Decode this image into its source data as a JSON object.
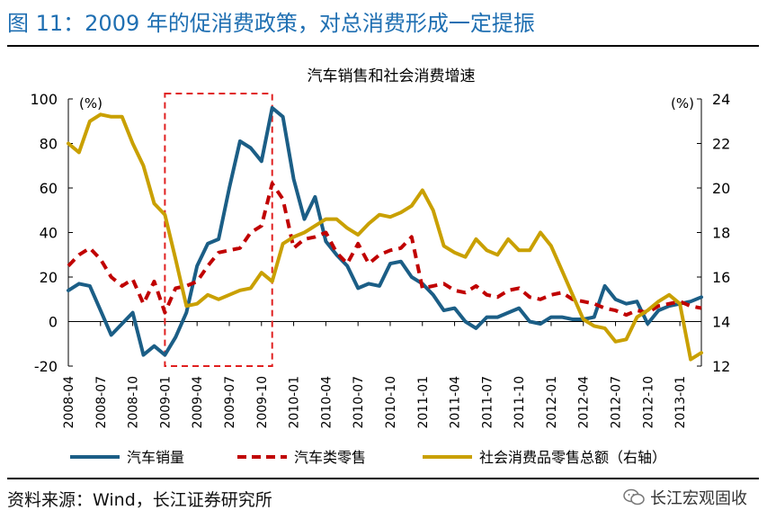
{
  "figure": {
    "title": "图 11：2009 年的促消费政策，对总消费形成一定提振",
    "source": "资料来源：Wind，长江证券研究所",
    "brand": "长江宏观固收"
  },
  "chart_data": {
    "type": "line",
    "title": "汽车销售和社会消费增速",
    "left_unit": "(%)",
    "right_unit": "(%)",
    "ylim_left": [
      -20,
      100
    ],
    "yticks_left": [
      "100",
      "80",
      "60",
      "40",
      "20",
      "0",
      "-20"
    ],
    "ylim_right": [
      12,
      24
    ],
    "yticks_right": [
      "24",
      "22",
      "20",
      "18",
      "16",
      "14",
      "12"
    ],
    "xlim": [
      "2008-04",
      "2013-03"
    ],
    "xtick_labels": [
      "2008-04",
      "2008-07",
      "2008-10",
      "2009-01",
      "2009-04",
      "2009-07",
      "2009-10",
      "2010-01",
      "2010-04",
      "2010-07",
      "2010-10",
      "2011-01",
      "2011-04",
      "2011-07",
      "2011-10",
      "2012-01",
      "2012-04",
      "2012-07",
      "2012-10",
      "2013-01"
    ],
    "grid": false,
    "legend_position": "bottom",
    "highlight_box": {
      "x_from": "2009-01",
      "x_to": "2009-11",
      "style": "red dashed rectangle"
    },
    "series": [
      {
        "name": "汽车销量",
        "axis": "left",
        "color": "#1b5e86",
        "style": "solid",
        "points": [
          [
            "2008-04",
            14
          ],
          [
            "2008-05",
            17
          ],
          [
            "2008-06",
            16
          ],
          [
            "2008-07",
            5
          ],
          [
            "2008-08",
            -6
          ],
          [
            "2008-09",
            -1
          ],
          [
            "2008-10",
            4
          ],
          [
            "2008-11",
            -15
          ],
          [
            "2008-12",
            -11
          ],
          [
            "2009-01",
            -15
          ],
          [
            "2009-02",
            -7
          ],
          [
            "2009-03",
            4
          ],
          [
            "2009-04",
            25
          ],
          [
            "2009-05",
            35
          ],
          [
            "2009-06",
            37
          ],
          [
            "2009-07",
            60
          ],
          [
            "2009-08",
            81
          ],
          [
            "2009-09",
            78
          ],
          [
            "2009-10",
            72
          ],
          [
            "2009-11",
            96
          ],
          [
            "2009-12",
            92
          ],
          [
            "2010-01",
            64
          ],
          [
            "2010-02",
            46
          ],
          [
            "2010-03",
            56
          ],
          [
            "2010-04",
            36
          ],
          [
            "2010-05",
            30
          ],
          [
            "2010-06",
            25
          ],
          [
            "2010-07",
            15
          ],
          [
            "2010-08",
            17
          ],
          [
            "2010-09",
            16
          ],
          [
            "2010-10",
            26
          ],
          [
            "2010-11",
            27
          ],
          [
            "2010-12",
            20
          ],
          [
            "2011-01",
            17
          ],
          [
            "2011-02",
            12
          ],
          [
            "2011-03",
            5
          ],
          [
            "2011-04",
            6
          ],
          [
            "2011-05",
            0
          ],
          [
            "2011-06",
            -3
          ],
          [
            "2011-07",
            2
          ],
          [
            "2011-08",
            2
          ],
          [
            "2011-09",
            4
          ],
          [
            "2011-10",
            6
          ],
          [
            "2011-11",
            0
          ],
          [
            "2011-12",
            -1
          ],
          [
            "2012-01",
            2
          ],
          [
            "2012-02",
            2
          ],
          [
            "2012-03",
            1
          ],
          [
            "2012-04",
            1
          ],
          [
            "2012-05",
            2
          ],
          [
            "2012-06",
            16
          ],
          [
            "2012-07",
            10
          ],
          [
            "2012-08",
            8
          ],
          [
            "2012-09",
            9
          ],
          [
            "2012-10",
            -1
          ],
          [
            "2012-11",
            5
          ],
          [
            "2012-12",
            7
          ],
          [
            "2013-01",
            8
          ],
          [
            "2013-02",
            9
          ],
          [
            "2013-03",
            11
          ]
        ]
      },
      {
        "name": "汽车类零售",
        "axis": "left",
        "color": "#c00000",
        "style": "dashed",
        "points": [
          [
            "2008-04",
            25
          ],
          [
            "2008-05",
            30
          ],
          [
            "2008-06",
            33
          ],
          [
            "2008-07",
            28
          ],
          [
            "2008-08",
            20
          ],
          [
            "2008-09",
            16
          ],
          [
            "2008-10",
            19
          ],
          [
            "2008-11",
            8
          ],
          [
            "2008-12",
            18
          ],
          [
            "2009-01",
            4
          ],
          [
            "2009-02",
            15
          ],
          [
            "2009-03",
            16
          ],
          [
            "2009-04",
            18
          ],
          [
            "2009-05",
            25
          ],
          [
            "2009-06",
            31
          ],
          [
            "2009-07",
            32
          ],
          [
            "2009-08",
            33
          ],
          [
            "2009-09",
            40
          ],
          [
            "2009-10",
            43
          ],
          [
            "2009-11",
            62
          ],
          [
            "2009-12",
            55
          ],
          [
            "2010-01",
            33
          ],
          [
            "2010-02",
            37
          ],
          [
            "2010-03",
            38
          ],
          [
            "2010-04",
            40
          ],
          [
            "2010-05",
            31
          ],
          [
            "2010-06",
            26
          ],
          [
            "2010-07",
            35
          ],
          [
            "2010-08",
            26
          ],
          [
            "2010-09",
            30
          ],
          [
            "2010-10",
            32
          ],
          [
            "2010-11",
            33
          ],
          [
            "2010-12",
            38
          ],
          [
            "2011-01",
            15
          ],
          [
            "2011-02",
            16
          ],
          [
            "2011-03",
            17
          ],
          [
            "2011-04",
            14
          ],
          [
            "2011-05",
            13
          ],
          [
            "2011-06",
            16
          ],
          [
            "2011-07",
            12
          ],
          [
            "2011-08",
            11
          ],
          [
            "2011-09",
            14
          ],
          [
            "2011-10",
            15
          ],
          [
            "2011-11",
            11
          ],
          [
            "2011-12",
            10
          ],
          [
            "2012-01",
            12
          ],
          [
            "2012-02",
            13
          ],
          [
            "2012-03",
            10
          ],
          [
            "2012-04",
            9
          ],
          [
            "2012-05",
            8
          ],
          [
            "2012-06",
            6
          ],
          [
            "2012-07",
            5
          ],
          [
            "2012-08",
            3
          ],
          [
            "2012-09",
            5
          ],
          [
            "2012-10",
            4
          ],
          [
            "2012-11",
            7
          ],
          [
            "2012-12",
            8
          ],
          [
            "2013-01",
            9
          ],
          [
            "2013-02",
            7
          ],
          [
            "2013-03",
            6
          ]
        ]
      },
      {
        "name": "社会消费品零售总额（右轴）",
        "axis": "right",
        "color": "#c9a000",
        "style": "solid",
        "points": [
          [
            "2008-04",
            22
          ],
          [
            "2008-05",
            21.6
          ],
          [
            "2008-06",
            23
          ],
          [
            "2008-07",
            23.3
          ],
          [
            "2008-08",
            23.2
          ],
          [
            "2008-09",
            23.2
          ],
          [
            "2008-10",
            22
          ],
          [
            "2008-11",
            21
          ],
          [
            "2008-12",
            19.3
          ],
          [
            "2009-01",
            18.8
          ],
          [
            "2009-02",
            16.8
          ],
          [
            "2009-03",
            14.7
          ],
          [
            "2009-04",
            14.8
          ],
          [
            "2009-05",
            15.2
          ],
          [
            "2009-06",
            15
          ],
          [
            "2009-07",
            15.2
          ],
          [
            "2009-08",
            15.4
          ],
          [
            "2009-09",
            15.5
          ],
          [
            "2009-10",
            16.2
          ],
          [
            "2009-11",
            15.8
          ],
          [
            "2009-12",
            17.5
          ],
          [
            "2010-01",
            17.8
          ],
          [
            "2010-02",
            18
          ],
          [
            "2010-03",
            18.3
          ],
          [
            "2010-04",
            18.6
          ],
          [
            "2010-05",
            18.6
          ],
          [
            "2010-06",
            18.2
          ],
          [
            "2010-07",
            17.9
          ],
          [
            "2010-08",
            18.4
          ],
          [
            "2010-09",
            18.8
          ],
          [
            "2010-10",
            18.7
          ],
          [
            "2010-11",
            18.9
          ],
          [
            "2010-12",
            19.2
          ],
          [
            "2011-01",
            19.9
          ],
          [
            "2011-02",
            19
          ],
          [
            "2011-03",
            17.4
          ],
          [
            "2011-04",
            17.1
          ],
          [
            "2011-05",
            16.9
          ],
          [
            "2011-06",
            17.7
          ],
          [
            "2011-07",
            17.2
          ],
          [
            "2011-08",
            17
          ],
          [
            "2011-09",
            17.7
          ],
          [
            "2011-10",
            17.2
          ],
          [
            "2011-11",
            17.2
          ],
          [
            "2011-12",
            18
          ],
          [
            "2012-01",
            17.4
          ],
          [
            "2012-02",
            16.3
          ],
          [
            "2012-03",
            15.2
          ],
          [
            "2012-04",
            14.1
          ],
          [
            "2012-05",
            13.8
          ],
          [
            "2012-06",
            13.7
          ],
          [
            "2012-07",
            13.1
          ],
          [
            "2012-08",
            13.2
          ],
          [
            "2012-09",
            14.2
          ],
          [
            "2012-10",
            14.5
          ],
          [
            "2012-11",
            14.9
          ],
          [
            "2012-12",
            15.2
          ],
          [
            "2013-01",
            14.8
          ],
          [
            "2013-02",
            12.3
          ],
          [
            "2013-03",
            12.6
          ]
        ]
      }
    ]
  }
}
